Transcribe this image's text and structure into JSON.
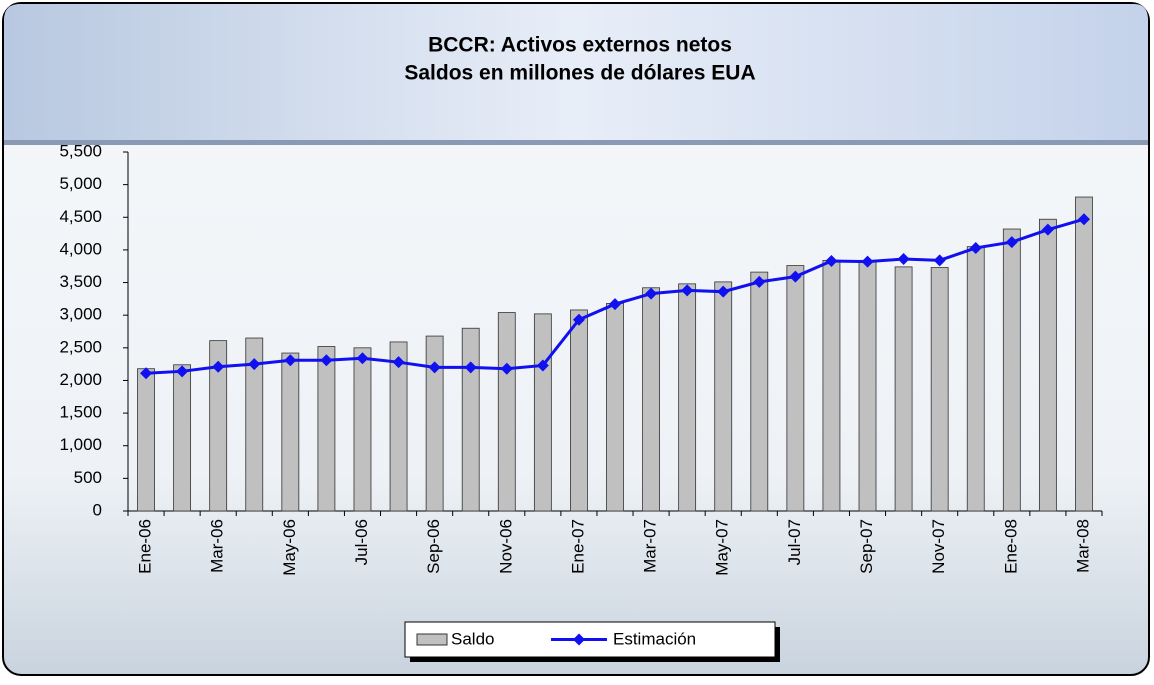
{
  "chart_data": {
    "type": "bar-line",
    "title": "BCCR: Activos externos netos",
    "subtitle": "Saldos en millones de dólares EUA",
    "categories": [
      "Ene-06",
      null,
      "Mar-06",
      null,
      "May-06",
      null,
      "Jul-06",
      null,
      "Sep-06",
      null,
      "Nov-06",
      null,
      "Ene-07",
      null,
      "Mar-07",
      null,
      "May-07",
      null,
      "Jul-07",
      null,
      "Sep-07",
      null,
      "Nov-07",
      null,
      "Ene-08",
      null,
      "Mar-08"
    ],
    "series": [
      {
        "name": "Saldo",
        "kind": "bar",
        "color": "#c0c0c0",
        "values": [
          2180,
          2240,
          2610,
          2650,
          2420,
          2520,
          2500,
          2590,
          2680,
          2800,
          3040,
          3020,
          3080,
          3180,
          3420,
          3480,
          3510,
          3660,
          3760,
          3840,
          3840,
          3740,
          3730,
          4050,
          4320,
          4470,
          4810
        ]
      },
      {
        "name": "Estimación",
        "kind": "line",
        "color": "#1010f0",
        "values": [
          2110,
          2140,
          2210,
          2250,
          2310,
          2310,
          2340,
          2280,
          2200,
          2200,
          2180,
          2230,
          2930,
          3170,
          3330,
          3380,
          3360,
          3510,
          3590,
          3830,
          3820,
          3860,
          3840,
          4030,
          4120,
          4310,
          4470
        ]
      }
    ],
    "ylim": [
      0,
      5500
    ],
    "yticks": [
      0,
      500,
      {
        "value": 1000,
        "label": "1,000"
      },
      {
        "value": 1500,
        "label": "1,500"
      },
      {
        "value": 2000,
        "label": "2,000"
      },
      {
        "value": 2500,
        "label": "2,500"
      },
      {
        "value": 3000,
        "label": "3,000"
      },
      {
        "value": 3500,
        "label": "3,500"
      },
      {
        "value": 4000,
        "label": "4,000"
      },
      {
        "value": 4500,
        "label": "4,500"
      },
      {
        "value": 5000,
        "label": "5,000"
      },
      {
        "value": 5500,
        "label": "5,500"
      }
    ],
    "legend": "bottom"
  }
}
